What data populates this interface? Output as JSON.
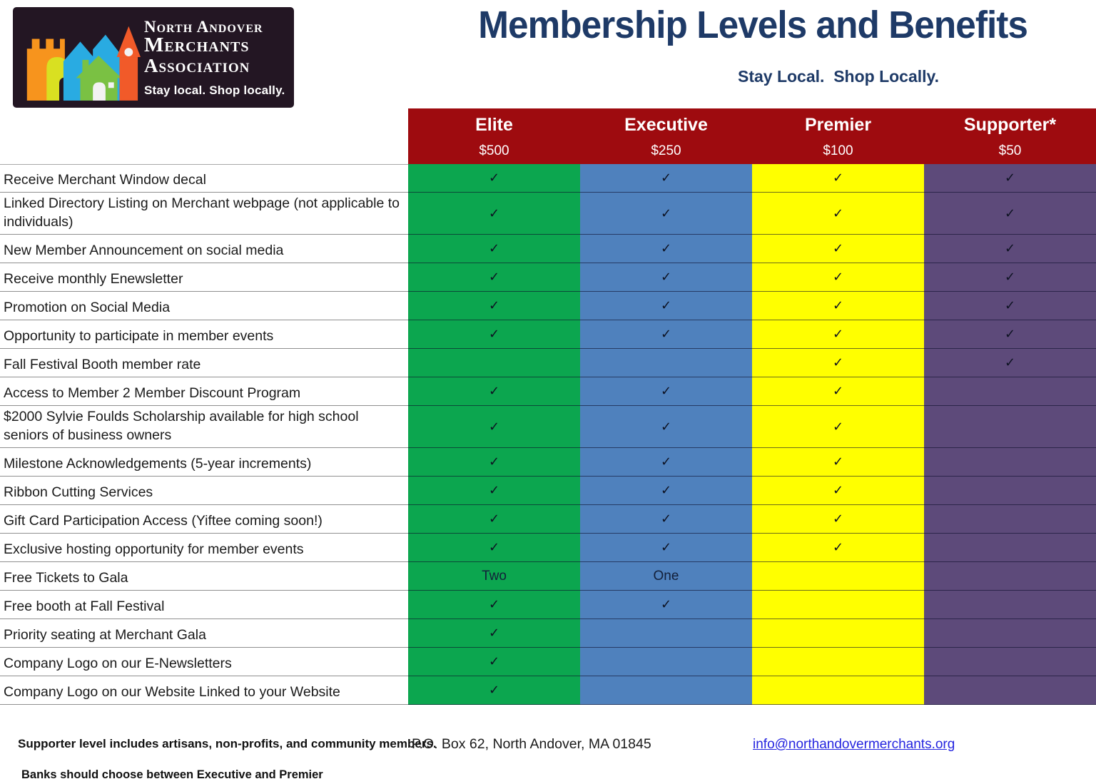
{
  "logo": {
    "line1": "North Andover",
    "line2": "Merchants",
    "line3": "Association",
    "tagline": "Stay local. Shop locally."
  },
  "header": {
    "title": "Membership Levels and Benefits",
    "subtitle": "Stay Local.  Shop Locally."
  },
  "colors": {
    "title_navy": "#1E3A67",
    "header_red": "#9E0B0F",
    "elite_green": "#0CA64F",
    "executive_blue": "#4F81BD",
    "premier_yellow": "#FFFF00",
    "supporter_purple": "#5D4A7A",
    "link_blue": "#2424DF",
    "logo_background": "#231623"
  },
  "table": {
    "header_bg": "#9E0B0F",
    "check_glyph": "✓",
    "columns": [
      {
        "name": "Elite",
        "price": "$500",
        "color": "#0CA64F"
      },
      {
        "name": "Executive",
        "price": "$250",
        "color": "#4F81BD"
      },
      {
        "name": "Premier",
        "price": "$100",
        "color": "#FFFF00"
      },
      {
        "name": "Supporter*",
        "price": "$50",
        "color": "#5D4A7A"
      }
    ],
    "rows": [
      {
        "label": "Receive Merchant Window decal",
        "cells": [
          "check",
          "check",
          "check",
          "check"
        ]
      },
      {
        "label": "Linked Directory Listing on Merchant webpage (not applicable to individuals)",
        "cells": [
          "check",
          "check",
          "check",
          "check"
        ]
      },
      {
        "label": "New Member Announcement on social media",
        "cells": [
          "check",
          "check",
          "check",
          "check"
        ]
      },
      {
        "label": "Receive monthly Enewsletter",
        "cells": [
          "check",
          "check",
          "check",
          "check"
        ]
      },
      {
        "label": "Promotion on Social Media",
        "cells": [
          "check",
          "check",
          "check",
          "check"
        ]
      },
      {
        "label": "Opportunity to participate in member events",
        "cells": [
          "check",
          "check",
          "check",
          "check"
        ]
      },
      {
        "label": "Fall Festival Booth member rate",
        "cells": [
          "",
          "",
          "check",
          "check"
        ]
      },
      {
        "label": "Access to Member 2 Member Discount Program",
        "cells": [
          "check",
          "check",
          "check",
          ""
        ]
      },
      {
        "label": "$2000 Sylvie Foulds Scholarship available for high school seniors of business owners",
        "cells": [
          "check",
          "check",
          "check",
          ""
        ]
      },
      {
        "label": "Milestone Acknowledgements (5-year increments)",
        "cells": [
          "check",
          "check",
          "check",
          ""
        ]
      },
      {
        "label": "Ribbon Cutting Services",
        "cells": [
          "check",
          "check",
          "check",
          ""
        ]
      },
      {
        "label": "Gift Card Participation Access (Yiftee coming soon!)",
        "cells": [
          "check",
          "check",
          "check",
          ""
        ]
      },
      {
        "label": "Exclusive hosting opportunity for member events",
        "cells": [
          "check",
          "check",
          "check",
          ""
        ]
      },
      {
        "label": "Free Tickets to Gala",
        "cells": [
          "Two",
          "One",
          "",
          ""
        ]
      },
      {
        "label": "Free booth at Fall Festival",
        "cells": [
          "check",
          "check",
          "",
          ""
        ]
      },
      {
        "label": "Priority seating at Merchant Gala",
        "cells": [
          "check",
          "",
          "",
          ""
        ]
      },
      {
        "label": "Company Logo on our E-Newsletters",
        "cells": [
          "check",
          "",
          "",
          ""
        ]
      },
      {
        "label": "Company Logo on our Website Linked to your Website",
        "cells": [
          "check",
          "",
          "",
          ""
        ]
      }
    ]
  },
  "footer": {
    "note1": "Supporter level includes artisans, non-profits, and community members.",
    "address": "P.O. Box 62, North Andover, MA 01845",
    "email": "info@northandovermerchants.org",
    "note2": "Banks should choose between Executive and Premier"
  }
}
